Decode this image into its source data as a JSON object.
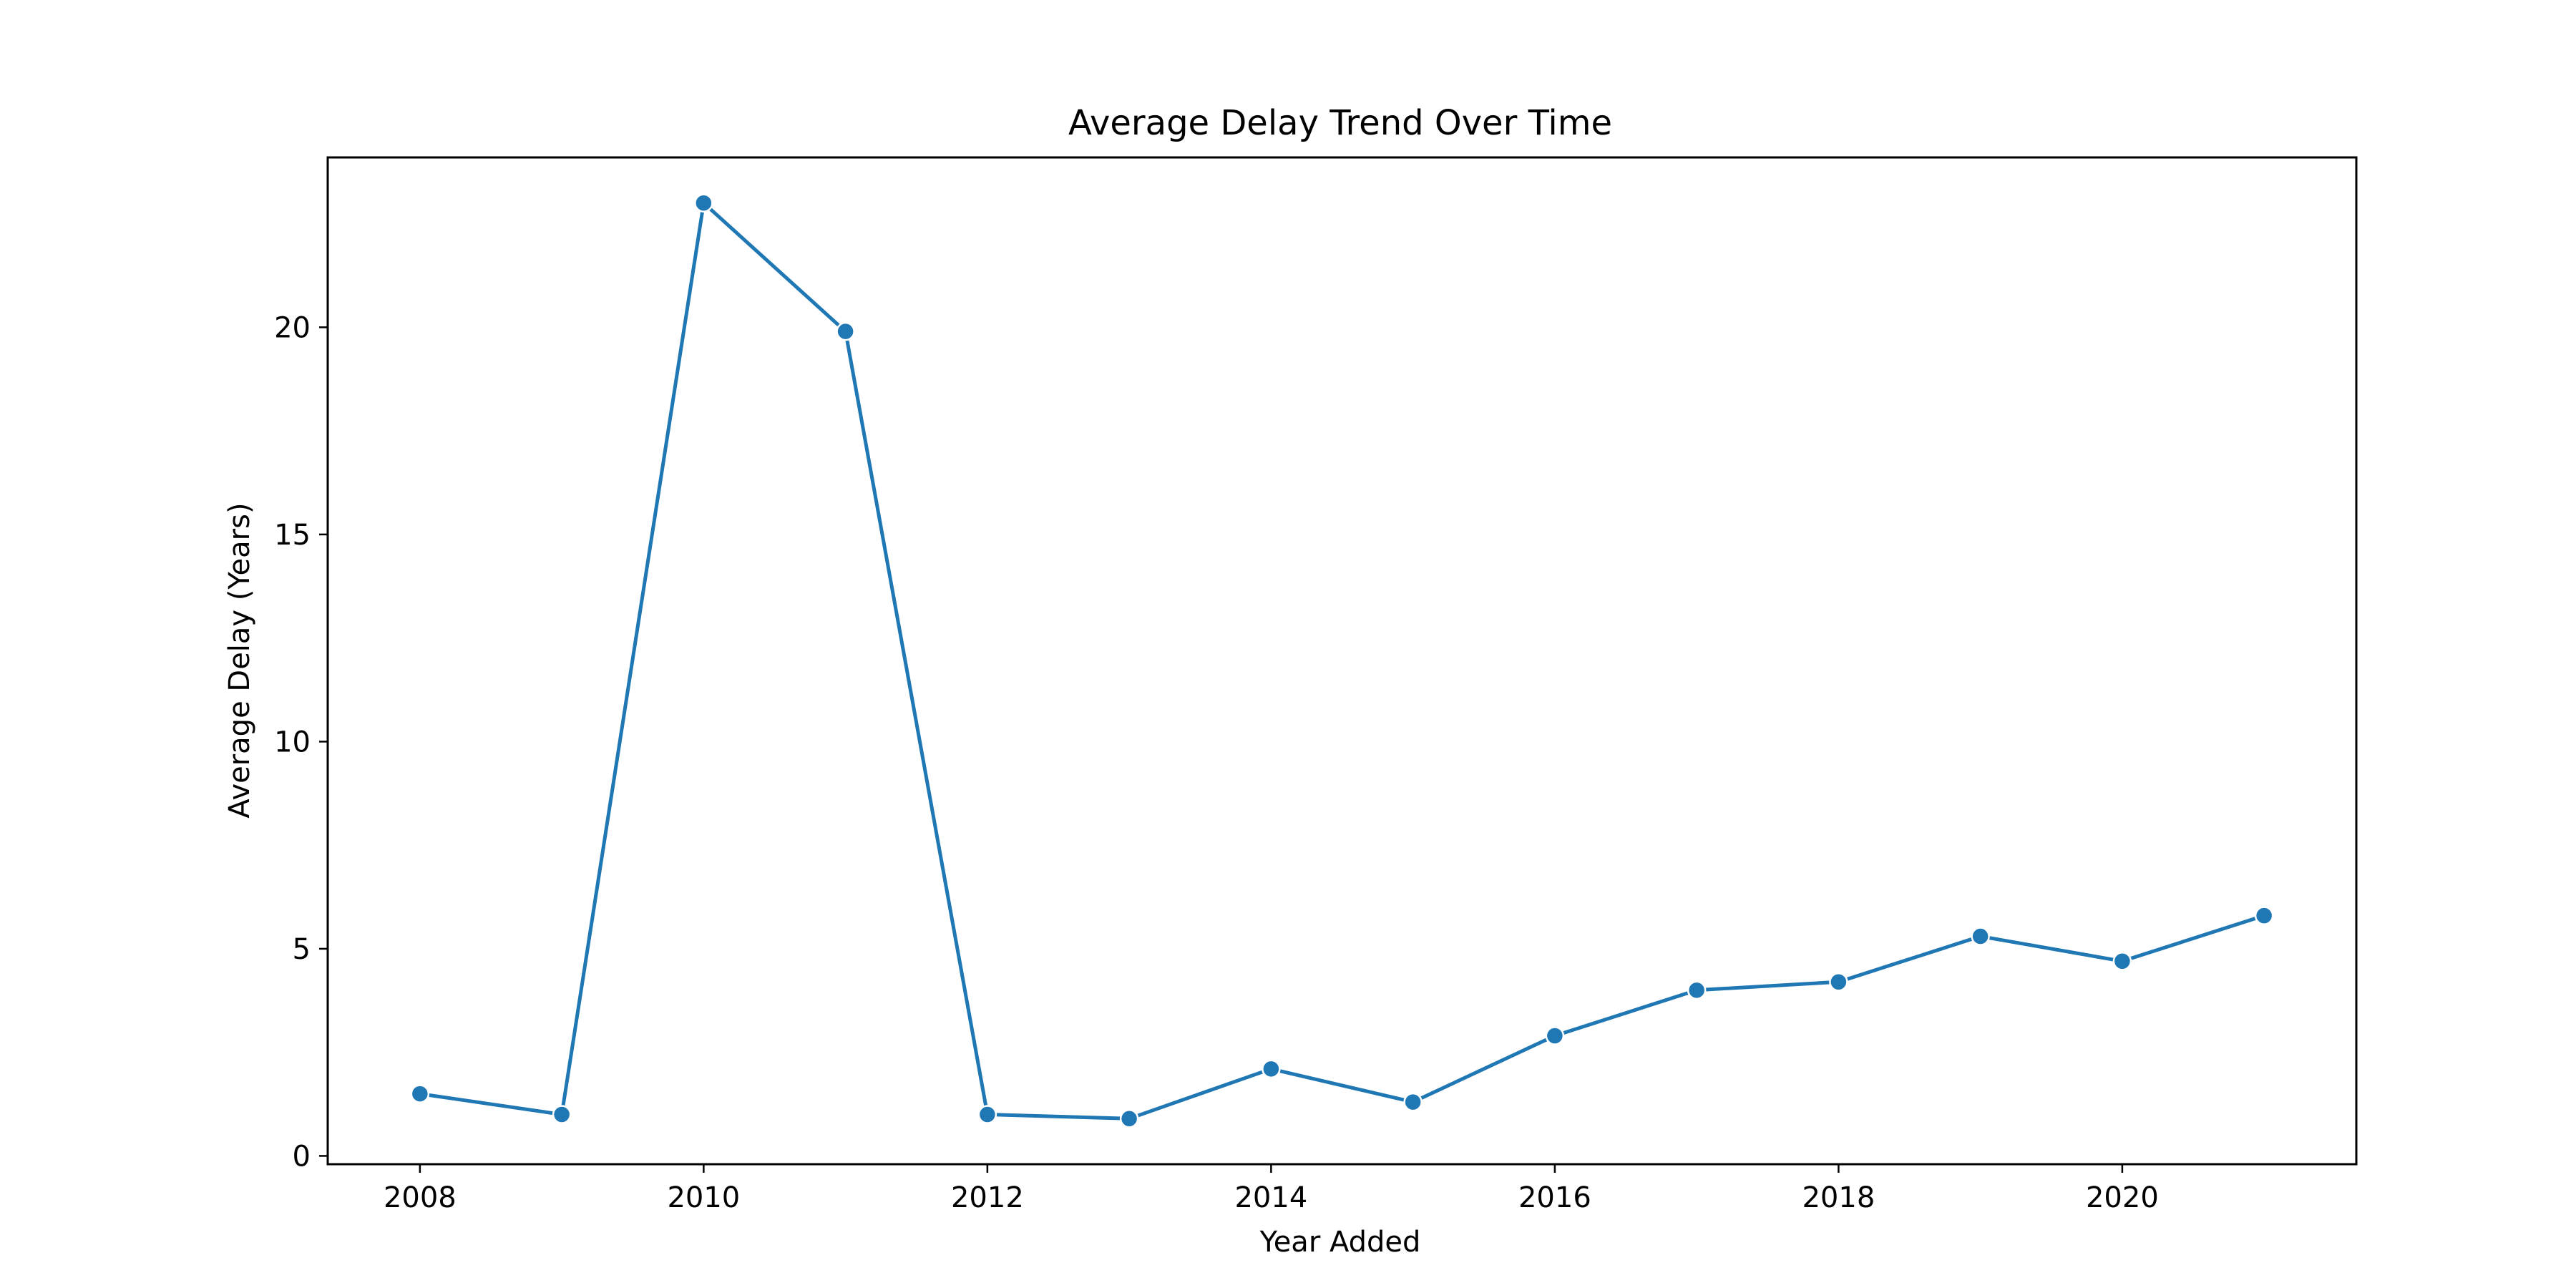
{
  "chart_data": {
    "type": "line",
    "title": "Average Delay Trend Over Time",
    "xlabel": "Year Added",
    "ylabel": "Average Delay (Years)",
    "x": [
      2008,
      2009,
      2010,
      2011,
      2012,
      2013,
      2014,
      2015,
      2016,
      2017,
      2018,
      2019,
      2020,
      2021
    ],
    "series": [
      {
        "values": [
          1.5,
          1.0,
          23.0,
          19.9,
          1.0,
          0.9,
          2.1,
          1.3,
          2.9,
          4.0,
          4.2,
          5.3,
          4.7,
          5.8
        ],
        "color": "#1f77b4",
        "marker": "circle"
      }
    ],
    "xlim": [
      2007.35,
      2021.65
    ],
    "ylim": [
      -0.2,
      24.1
    ],
    "xticks": [
      2008,
      2010,
      2012,
      2014,
      2016,
      2018,
      2020
    ],
    "yticks": [
      0,
      5,
      10,
      15,
      20
    ],
    "xtick_labels": [
      "2008",
      "2010",
      "2012",
      "2014",
      "2016",
      "2018",
      "2020"
    ],
    "ytick_labels": [
      "0",
      "5",
      "10",
      "15",
      "20"
    ],
    "grid": false,
    "legend": "none"
  }
}
